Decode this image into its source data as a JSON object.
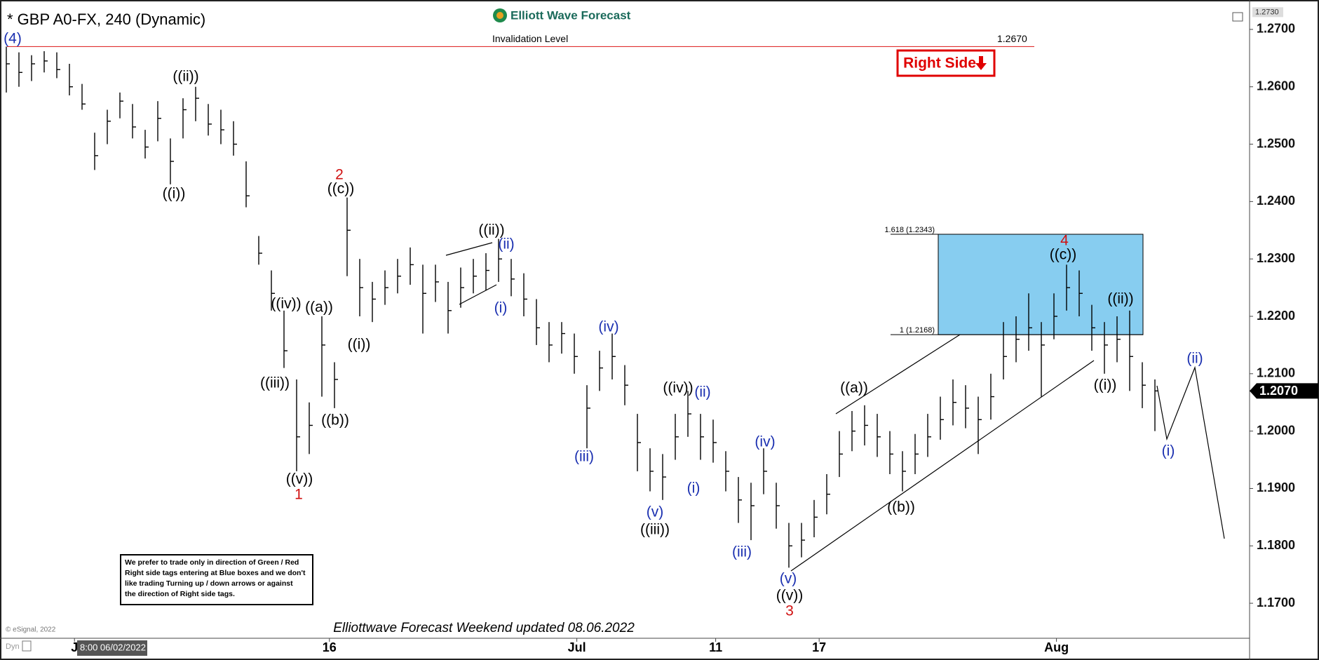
{
  "chart_data": {
    "type": "ohlc",
    "title": "* GBP A0-FX, 240 (Dynamic)",
    "logo": "Elliott Wave Forecast",
    "ylim": [
      1.1639,
      1.2739
    ],
    "xlim": [
      -0.5,
      98.5
    ],
    "yticks": [
      {
        "value": 1.17,
        "label": "1.1700"
      },
      {
        "value": 1.18,
        "label": "1.1800"
      },
      {
        "value": 1.19,
        "label": "1.1900"
      },
      {
        "value": 1.2,
        "label": "1.2000"
      },
      {
        "value": 1.21,
        "label": "1.2100"
      },
      {
        "value": 1.22,
        "label": "1.2200"
      },
      {
        "value": 1.23,
        "label": "1.2300"
      },
      {
        "value": 1.24,
        "label": "1.2400"
      },
      {
        "value": 1.25,
        "label": "1.2500"
      },
      {
        "value": 1.26,
        "label": "1.2600"
      },
      {
        "value": 1.27,
        "label": "1.2700"
      }
    ],
    "xticks": [
      {
        "value": 5.4,
        "label": "J"
      },
      {
        "value": 25.6,
        "label": "16"
      },
      {
        "value": 45.2,
        "label": "Jul"
      },
      {
        "value": 56.2,
        "label": "11"
      },
      {
        "value": 64.4,
        "label": "17"
      },
      {
        "value": 83.2,
        "label": "Aug"
      }
    ],
    "cursor_label": "8:00 06/02/2022",
    "bar_color": "#000000",
    "bars": {
      "high": [
        1.267,
        1.266,
        1.2655,
        1.2662,
        1.266,
        1.264,
        1.2605,
        1.252,
        1.256,
        1.259,
        1.257,
        1.2525,
        1.2575,
        1.251,
        1.258,
        1.26,
        1.257,
        1.256,
        1.254,
        1.247,
        1.234,
        1.228,
        1.221,
        1.209,
        1.205,
        1.22,
        1.212,
        1.2407,
        1.23,
        1.226,
        1.228,
        1.23,
        1.232,
        1.229,
        1.229,
        1.226,
        1.2285,
        1.23,
        1.231,
        1.2335,
        1.23,
        1.2275,
        1.223,
        1.219,
        1.219,
        1.217,
        1.208,
        1.214,
        1.217,
        1.2115,
        1.203,
        1.197,
        1.196,
        1.203,
        1.207,
        1.203,
        1.202,
        1.1965,
        1.192,
        1.191,
        1.197,
        1.191,
        1.184,
        1.184,
        1.188,
        1.1925,
        1.2,
        1.2035,
        1.2045,
        1.203,
        1.2,
        1.1965,
        1.1995,
        1.203,
        1.206,
        1.209,
        1.208,
        1.206,
        1.21,
        1.219,
        1.22,
        1.224,
        1.219,
        1.224,
        1.229,
        1.228,
        1.222,
        1.219,
        1.22,
        1.221,
        1.212,
        1.209
      ],
      "low": [
        1.259,
        1.26,
        1.261,
        1.2625,
        1.2615,
        1.2585,
        1.256,
        1.2455,
        1.25,
        1.2545,
        1.251,
        1.2475,
        1.2505,
        1.243,
        1.251,
        1.254,
        1.2515,
        1.25,
        1.248,
        1.239,
        1.229,
        1.221,
        1.211,
        1.193,
        1.196,
        1.206,
        1.204,
        1.227,
        1.22,
        1.219,
        1.222,
        1.224,
        1.2255,
        1.217,
        1.2225,
        1.217,
        1.2215,
        1.224,
        1.2245,
        1.226,
        1.2235,
        1.22,
        1.215,
        1.212,
        1.2135,
        1.21,
        1.197,
        1.207,
        1.209,
        1.2045,
        1.193,
        1.1895,
        1.188,
        1.195,
        1.199,
        1.195,
        1.1945,
        1.1895,
        1.184,
        1.181,
        1.189,
        1.183,
        1.1762,
        1.178,
        1.1815,
        1.1855,
        1.192,
        1.1965,
        1.1975,
        1.1955,
        1.1925,
        1.1895,
        1.1925,
        1.1955,
        1.1985,
        1.201,
        1.2005,
        1.196,
        1.202,
        1.209,
        1.212,
        1.214,
        1.206,
        1.216,
        1.221,
        1.22,
        1.214,
        1.21,
        1.212,
        1.207,
        1.204,
        1.2
      ],
      "close": [
        1.264,
        1.2625,
        1.264,
        1.2645,
        1.263,
        1.26,
        1.257,
        1.248,
        1.254,
        1.2575,
        1.253,
        1.2495,
        1.2545,
        1.247,
        1.256,
        1.258,
        1.2535,
        1.2525,
        1.25,
        1.241,
        1.231,
        1.224,
        1.214,
        1.199,
        1.201,
        1.215,
        1.209,
        1.235,
        1.225,
        1.223,
        1.225,
        1.227,
        1.229,
        1.224,
        1.226,
        1.221,
        1.225,
        1.227,
        1.228,
        1.23,
        1.2265,
        1.223,
        1.218,
        1.215,
        1.217,
        1.213,
        1.204,
        1.211,
        1.213,
        1.208,
        1.198,
        1.193,
        1.192,
        1.199,
        1.203,
        1.199,
        1.198,
        1.193,
        1.188,
        1.187,
        1.193,
        1.187,
        1.18,
        1.181,
        1.185,
        1.189,
        1.196,
        1.2,
        1.201,
        1.199,
        1.196,
        1.193,
        1.196,
        1.199,
        1.202,
        1.205,
        1.204,
        1.202,
        1.206,
        1.213,
        1.216,
        1.218,
        1.215,
        1.22,
        1.225,
        1.224,
        1.218,
        1.215,
        1.216,
        1.213,
        1.208,
        1.207
      ]
    },
    "invalidation": {
      "name": "Invalidation Level",
      "value": 1.267,
      "label": "1.2670",
      "color": "#e03030"
    },
    "fib_box": {
      "color": "#87cdf0",
      "levels": [
        {
          "value": 1.2343,
          "label": "1.618 (1.2343)"
        },
        {
          "value": 1.2168,
          "label": "1 (1.2168)"
        }
      ]
    },
    "last_price": {
      "value": 1.207,
      "label": "1.2070"
    },
    "top_price": {
      "value": 1.273,
      "label": "1.2730"
    },
    "right_side_tag": "Right Side",
    "wave_labels": [
      {
        "text": "(4)",
        "color": "#1a2fb0"
      },
      {
        "text": "((ii))",
        "color": "#000000"
      },
      {
        "text": "((i))",
        "color": "#000000"
      },
      {
        "text": "2",
        "color": "#d01010"
      },
      {
        "text": "((c))",
        "color": "#000000"
      },
      {
        "text": "((iv))",
        "color": "#000000"
      },
      {
        "text": "((a))",
        "color": "#000000"
      },
      {
        "text": "((iii))",
        "color": "#000000"
      },
      {
        "text": "((b))",
        "color": "#000000"
      },
      {
        "text": "((v))",
        "color": "#000000"
      },
      {
        "text": "1",
        "color": "#d01010"
      },
      {
        "text": "((i))",
        "color": "#000000"
      },
      {
        "text": "((ii))",
        "color": "#000000"
      },
      {
        "text": "(ii)",
        "color": "#1a2fb0"
      },
      {
        "text": "(i)",
        "color": "#1a2fb0"
      },
      {
        "text": "(iv)",
        "color": "#1a2fb0"
      },
      {
        "text": "(iii)",
        "color": "#1a2fb0"
      },
      {
        "text": "((iv))",
        "color": "#000000"
      },
      {
        "text": "(ii)",
        "color": "#1a2fb0"
      },
      {
        "text": "(v)",
        "color": "#1a2fb0"
      },
      {
        "text": "((iii))",
        "color": "#000000"
      },
      {
        "text": "(i)",
        "color": "#1a2fb0"
      },
      {
        "text": "(iv)",
        "color": "#1a2fb0"
      },
      {
        "text": "(iii)",
        "color": "#1a2fb0"
      },
      {
        "text": "(v)",
        "color": "#1a2fb0"
      },
      {
        "text": "((v))",
        "color": "#000000"
      },
      {
        "text": "3",
        "color": "#d01010"
      },
      {
        "text": "((a))",
        "color": "#000000"
      },
      {
        "text": "((b))",
        "color": "#000000"
      },
      {
        "text": "4",
        "color": "#d01010"
      },
      {
        "text": "((c))",
        "color": "#000000"
      },
      {
        "text": "((ii))",
        "color": "#000000"
      },
      {
        "text": "((i))",
        "color": "#000000"
      },
      {
        "text": "(ii)",
        "color": "#1a2fb0"
      },
      {
        "text": "(i)",
        "color": "#1a2fb0"
      }
    ],
    "note": [
      "We prefer to trade only in direction of Green / Red",
      "Right side tags entering at Blue boxes and we don't",
      "like trading Turning up / down arrows or against",
      "the direction of Right side tags."
    ],
    "footer": "Elliottwave Forecast Weekend updated 08.06.2022",
    "copyright": "© eSignal, 2022",
    "corner_tag": "Dyn"
  }
}
